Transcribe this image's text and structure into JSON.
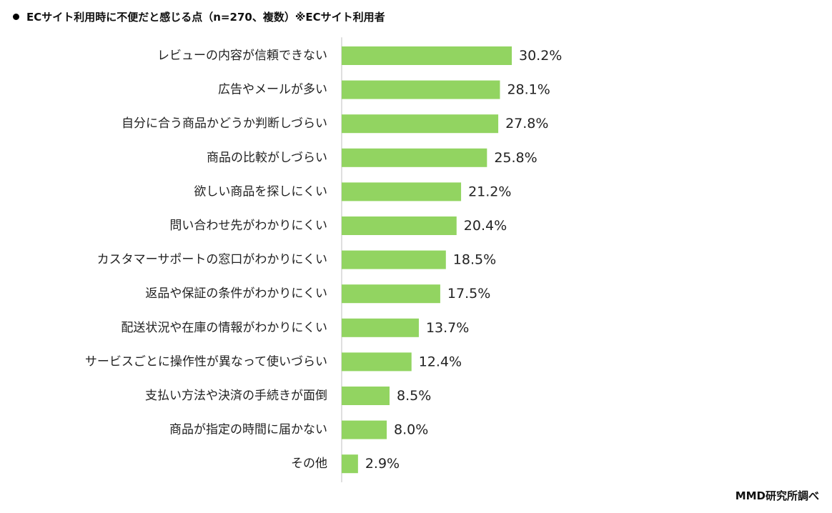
{
  "header": {
    "title": "ECサイト利用時に不便だと感じる点（n=270、複数）※ECサイト利用者"
  },
  "footer": {
    "source": "MMD研究所調べ"
  },
  "colors": {
    "bar": "#92d461",
    "axis": "#bfbfbf"
  },
  "chart_data": {
    "type": "bar",
    "orientation": "horizontal",
    "title": "ECサイト利用時に不便だと感じる点（n=270、複数）※ECサイト利用者",
    "xlabel": "",
    "ylabel": "",
    "xlim": [
      0,
      30.2
    ],
    "grid": false,
    "legend": "none",
    "unit": "%",
    "categories": [
      "レビューの内容が信頼できない",
      "広告やメールが多い",
      "自分に合う商品かどうか判断しづらい",
      "商品の比較がしづらい",
      "欲しい商品を探しにくい",
      "問い合わせ先がわかりにくい",
      "カスタマーサポートの窓口がわかりにくい",
      "返品や保証の条件がわかりにくい",
      "配送状況や在庫の情報がわかりにくい",
      "サービスごとに操作性が異なって使いづらい",
      "支払い方法や決済の手続きが面倒",
      "商品が指定の時間に届かない",
      "その他"
    ],
    "values": [
      30.2,
      28.1,
      27.8,
      25.8,
      21.2,
      20.4,
      18.5,
      17.5,
      13.7,
      12.4,
      8.5,
      8.0,
      2.9
    ],
    "value_labels": [
      "30.2%",
      "28.1%",
      "27.8%",
      "25.8%",
      "21.2%",
      "20.4%",
      "18.5%",
      "17.5%",
      "13.7%",
      "12.4%",
      "8.5%",
      "8.0%",
      "2.9%"
    ]
  }
}
